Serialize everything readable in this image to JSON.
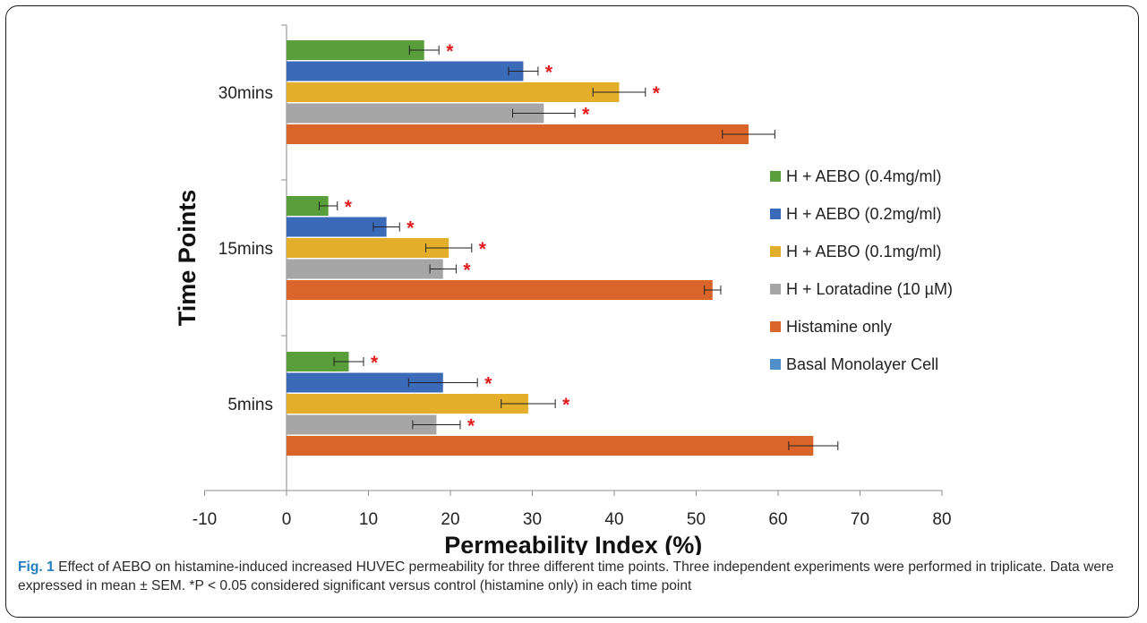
{
  "chart_data": {
    "type": "bar",
    "orientation": "horizontal",
    "xlabel": "Permeability Index (%)",
    "ylabel": "Time Points",
    "xlim": [
      -10,
      80
    ],
    "xticks": [
      -10,
      0,
      10,
      20,
      30,
      40,
      50,
      60,
      70,
      80
    ],
    "grid": false,
    "legend_position": "right",
    "categories": [
      "30mins",
      "15mins",
      "5mins"
    ],
    "series": [
      {
        "name": "H + AEBO (0.4mg/ml)",
        "color": "#5a9e3c",
        "values": [
          16.8,
          5.1,
          7.6
        ],
        "errors": [
          1.8,
          1.1,
          1.8
        ],
        "significant": [
          true,
          true,
          true
        ]
      },
      {
        "name": "H + AEBO (0.2mg/ml)",
        "color": "#3b6ab8",
        "values": [
          28.9,
          12.2,
          19.1
        ],
        "errors": [
          1.8,
          1.6,
          4.2
        ],
        "significant": [
          true,
          true,
          true
        ]
      },
      {
        "name": "H + AEBO (0.1mg/ml)",
        "color": "#e3ae2a",
        "values": [
          40.6,
          19.8,
          29.5
        ],
        "errors": [
          3.2,
          2.8,
          3.3
        ],
        "significant": [
          true,
          true,
          true
        ]
      },
      {
        "name": "H + Loratadine (10 µM)",
        "color": "#a6a6a6",
        "values": [
          31.4,
          19.1,
          18.3
        ],
        "errors": [
          3.8,
          1.6,
          2.9
        ],
        "significant": [
          true,
          true,
          true
        ]
      },
      {
        "name": "Histamine only",
        "color": "#d9652a",
        "values": [
          56.4,
          52.0,
          64.3
        ],
        "errors": [
          3.2,
          1.0,
          3.0
        ],
        "significant": [
          false,
          false,
          false
        ]
      },
      {
        "name": "Basal Monolayer Cell",
        "color": "#4f90c8",
        "values": [
          0,
          0,
          0
        ],
        "errors": [
          0,
          0,
          0
        ],
        "significant": [
          false,
          false,
          false
        ]
      }
    ],
    "significance_marker": "*",
    "marker_color": "#e31a1c"
  },
  "caption": {
    "label": "Fig. 1",
    "text": " Effect of AEBO on histamine-induced increased HUVEC permeability for three different time points. Three independent experiments were performed in triplicate. Data were expressed in mean ± SEM. *P < 0.05 considered significant versus control (histamine only) in each time point"
  }
}
